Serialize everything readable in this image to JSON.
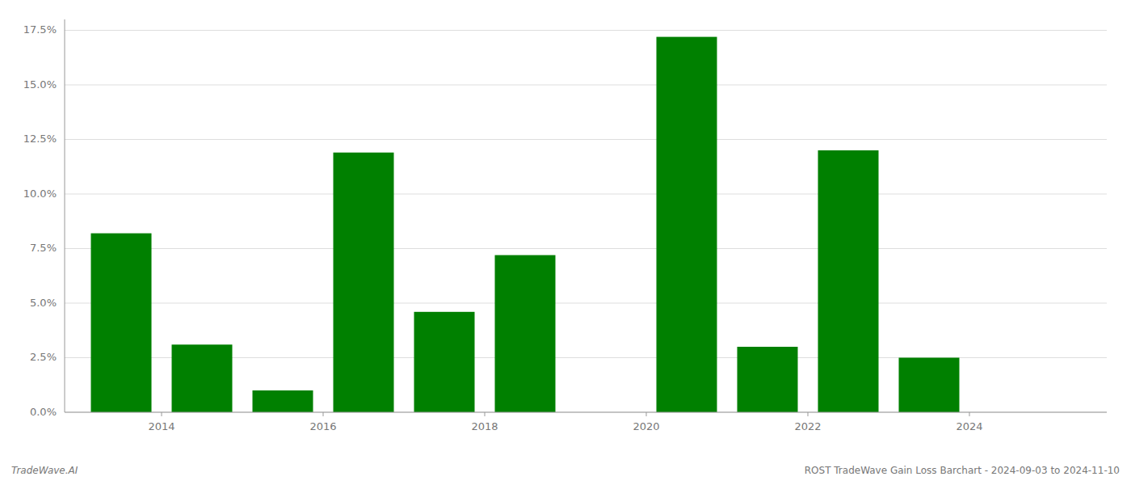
{
  "chart_data": {
    "type": "bar",
    "title": "ROST TradeWave Gain Loss Barchart - 2024-09-03 to 2024-11-10",
    "annotations": [
      "TradeWave.AI"
    ],
    "x": [
      2013,
      2014,
      2015,
      2016,
      2017,
      2018,
      2019,
      2020,
      2021,
      2022,
      2023,
      2024
    ],
    "values": [
      0.082,
      0.031,
      0.01,
      0.119,
      0.046,
      0.072,
      0.0,
      0.172,
      0.03,
      0.12,
      0.025,
      0.0
    ],
    "color": "#008000",
    "xlim": [
      2012.3,
      2025.2
    ],
    "xticks": [
      {
        "value": 2013.5,
        "label": "2014"
      },
      {
        "value": 2015.5,
        "label": "2016"
      },
      {
        "value": 2017.5,
        "label": "2018"
      },
      {
        "value": 2019.5,
        "label": "2020"
      },
      {
        "value": 2021.5,
        "label": "2022"
      },
      {
        "value": 2023.5,
        "label": "2024"
      }
    ],
    "ylim": [
      0,
      0.18
    ],
    "yticks": [
      {
        "value": 0.0,
        "label": "0.0%"
      },
      {
        "value": 0.025,
        "label": "2.5%"
      },
      {
        "value": 0.05,
        "label": "5.0%"
      },
      {
        "value": 0.075,
        "label": "7.5%"
      },
      {
        "value": 0.1,
        "label": "10.0%"
      },
      {
        "value": 0.125,
        "label": "12.5%"
      },
      {
        "value": 0.15,
        "label": "15.0%"
      },
      {
        "value": 0.175,
        "label": "17.5%"
      }
    ],
    "grid": true
  }
}
